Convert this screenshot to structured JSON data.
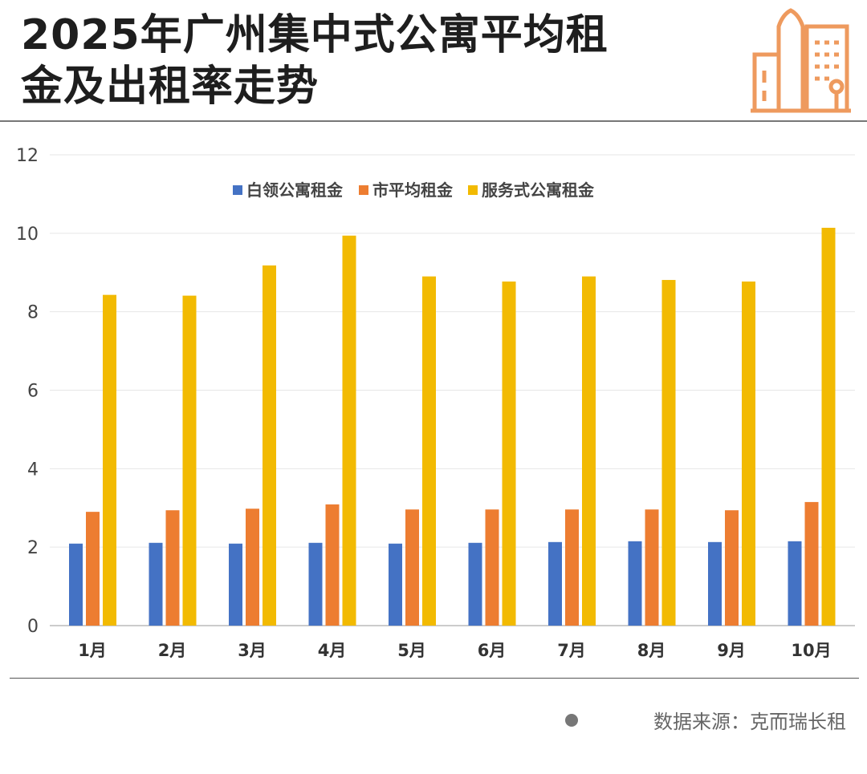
{
  "title_lines": [
    "2025年广州集中式公寓平均租",
    "金及出租率走势"
  ],
  "source": "数据来源：克而瑞长租",
  "chart_data": {
    "type": "bar",
    "categories": [
      "1月",
      "2月",
      "3月",
      "4月",
      "5月",
      "6月",
      "7月",
      "8月",
      "9月",
      "10月"
    ],
    "series": [
      {
        "name": "白领公寓租金",
        "color": "#4472C4",
        "values": [
          2.09,
          2.11,
          2.09,
          2.11,
          2.09,
          2.11,
          2.13,
          2.15,
          2.13,
          2.15
        ]
      },
      {
        "name": "市平均租金",
        "color": "#ED7D31",
        "values": [
          2.9,
          2.94,
          2.98,
          3.09,
          2.96,
          2.96,
          2.96,
          2.96,
          2.94,
          3.15
        ]
      },
      {
        "name": "服务式公寓租金",
        "color": "#F2BA02",
        "values": [
          8.43,
          8.41,
          9.18,
          9.94,
          8.9,
          8.77,
          8.9,
          8.81,
          8.77,
          10.14
        ]
      }
    ],
    "ylim": [
      0,
      12
    ],
    "yticks": [
      0,
      2,
      4,
      6,
      8,
      10,
      12
    ],
    "grid": true,
    "legend": "top-center"
  }
}
